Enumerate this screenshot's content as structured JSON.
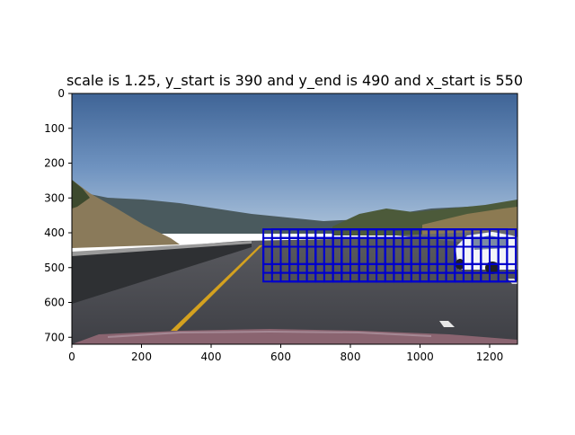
{
  "chart_data": {
    "type": "image",
    "title": "scale is 1.25, y_start is 390 and y_end is 490 and x_start is 550",
    "xlim": [
      0,
      1280
    ],
    "ylim": [
      720,
      0
    ],
    "xticks": [
      0,
      200,
      400,
      600,
      800,
      1000,
      1200
    ],
    "yticks": [
      0,
      100,
      200,
      300,
      400,
      500,
      600,
      700
    ],
    "scale": 1.25,
    "y_start": 390,
    "y_end": 490,
    "x_start": 550,
    "window_size": 80,
    "window_step": 20,
    "window_color": "#0000cc"
  }
}
